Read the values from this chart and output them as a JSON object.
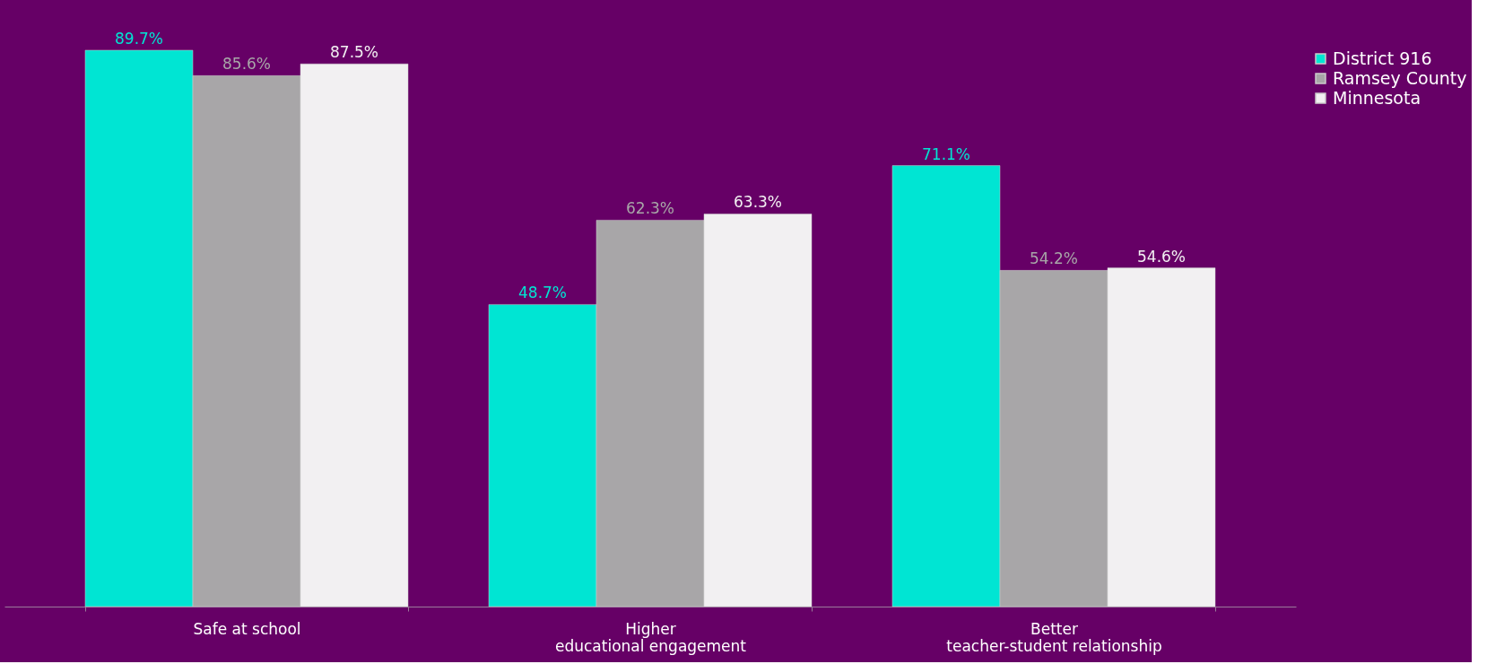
{
  "chart_data": {
    "type": "bar",
    "categories": [
      "Safe at school",
      "Higher\neducational engagement",
      "Better\nteacher-student relationship"
    ],
    "series": [
      {
        "name": "District 916",
        "color": "#00e5d3",
        "values": [
          89.7,
          48.7,
          71.1
        ],
        "value_labels": [
          "89.7%",
          "48.7%",
          "71.1%"
        ]
      },
      {
        "name": "Ramsey County",
        "color": "#a8a6a8",
        "values": [
          85.6,
          62.3,
          54.2
        ],
        "value_labels": [
          "85.6%",
          "62.3%",
          "54.2%"
        ]
      },
      {
        "name": "Minnesota",
        "color": "#f2f0f2",
        "values": [
          87.5,
          63.3,
          54.6
        ],
        "value_labels": [
          "87.5%",
          "63.3%",
          "54.6%"
        ]
      }
    ],
    "legend": "right",
    "tick_labels": "x"
  }
}
